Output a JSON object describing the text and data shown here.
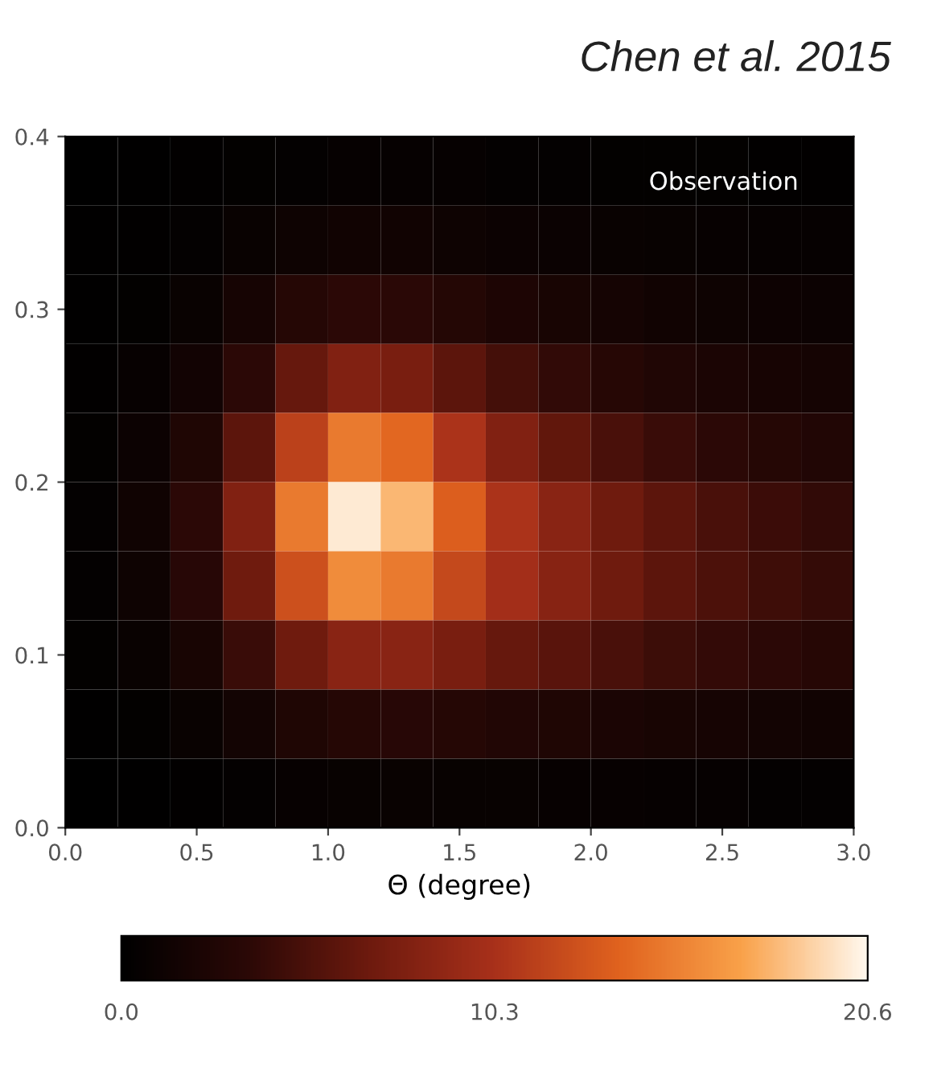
{
  "chart_data": {
    "type": "heatmap",
    "title": "Chen et al. 2015",
    "annotations": [
      "Observation"
    ],
    "xlabel": "Θ (degree)",
    "x": [
      0.1,
      0.3,
      0.5,
      0.7,
      0.9,
      1.1,
      1.3,
      1.5,
      1.7,
      1.9,
      2.1,
      2.3,
      2.5,
      2.7,
      2.9
    ],
    "y": [
      0.38,
      0.34,
      0.3,
      0.26,
      0.22,
      0.18,
      0.14,
      0.1,
      0.06,
      0.02
    ],
    "xlim": [
      0,
      3
    ],
    "ylim": [
      0,
      0.4
    ],
    "xticks": [
      {
        "value": 0,
        "label": "0.0"
      },
      0.5,
      {
        "value": 1,
        "label": "1.0"
      },
      1.5,
      {
        "value": 2,
        "label": "2.0"
      },
      2.5,
      {
        "value": 3,
        "label": "3.0"
      }
    ],
    "yticks": [
      {
        "value": 0,
        "label": "0.0"
      },
      0.1,
      0.2,
      0.3,
      0.4
    ],
    "clim": [
      0,
      20.6
    ],
    "cticks": [
      {
        "value": 0,
        "label": "0.0"
      },
      10.3,
      20.6
    ],
    "cells": [
      [
        0,
        0.1,
        0.2,
        0.3,
        0.4,
        0.5,
        0.5,
        0.5,
        0.4,
        0.4,
        0.3,
        0.3,
        0.3,
        0.2,
        0.2
      ],
      [
        0.1,
        0.2,
        0.4,
        0.8,
        1.2,
        1.4,
        1.4,
        1.2,
        1.0,
        0.9,
        0.8,
        0.7,
        0.6,
        0.5,
        0.5
      ],
      [
        0.1,
        0.3,
        0.8,
        1.8,
        3.0,
        3.5,
        3.4,
        2.9,
        2.4,
        2.0,
        1.7,
        1.4,
        1.2,
        1.1,
        1.0
      ],
      [
        0.2,
        0.6,
        1.5,
        3.5,
        6.5,
        8.0,
        7.5,
        6.0,
        4.8,
        3.8,
        3.1,
        2.6,
        2.2,
        1.9,
        1.7
      ],
      [
        0.3,
        1.0,
        2.5,
        6.0,
        11.5,
        15.0,
        14.0,
        10.5,
        8.0,
        6.2,
        5.0,
        4.2,
        3.5,
        3.0,
        2.7
      ],
      [
        0.4,
        1.3,
        3.5,
        8.0,
        15.0,
        20.0,
        18.0,
        13.5,
        10.5,
        8.5,
        7.0,
        6.0,
        5.0,
        4.3,
        3.8
      ],
      [
        0.4,
        1.2,
        3.2,
        7.0,
        12.5,
        16.0,
        15.0,
        12.0,
        10.0,
        8.3,
        7.0,
        6.0,
        5.2,
        4.5,
        4.0
      ],
      [
        0.3,
        0.8,
        2.0,
        4.2,
        7.0,
        8.5,
        8.5,
        7.5,
        6.5,
        5.8,
        5.0,
        4.4,
        3.9,
        3.5,
        3.1
      ],
      [
        0.1,
        0.3,
        0.8,
        1.6,
        2.5,
        3.0,
        3.2,
        3.0,
        2.7,
        2.5,
        2.2,
        2.0,
        1.8,
        1.6,
        1.4
      ],
      [
        0,
        0.1,
        0.2,
        0.4,
        0.6,
        0.7,
        0.8,
        0.7,
        0.7,
        0.6,
        0.6,
        0.5,
        0.5,
        0.4,
        0.4
      ]
    ]
  }
}
